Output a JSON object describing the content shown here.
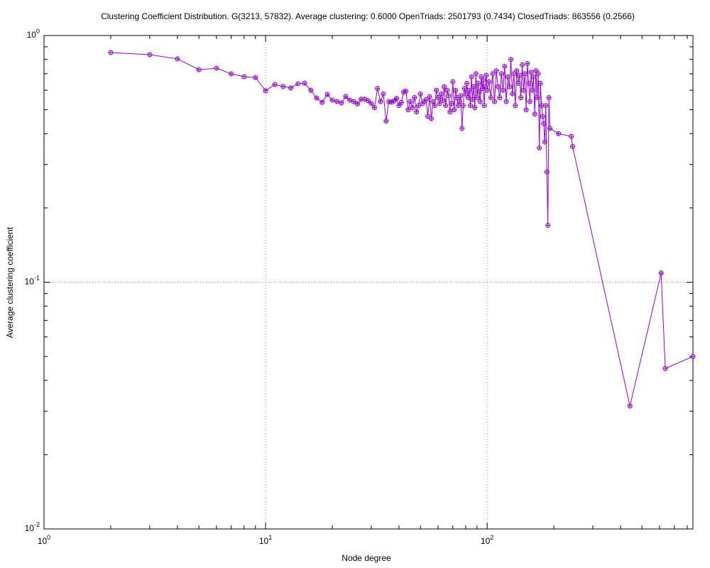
{
  "chart_data": {
    "type": "line",
    "title": "Clustering Coefficient Distribution. G(3213, 57832). Average clustering: 0.6000  OpenTriads: 2501793 (0.7434)  ClosedTriads: 863556 (0.2566)",
    "x_label": "Node degree",
    "y_label": "Average clustering coefficient",
    "log_x": true,
    "log_y": true,
    "grid": true,
    "xlim": [
      1,
      849
    ],
    "ylim": [
      0.01,
      1
    ],
    "xticks": [
      {
        "value": 1,
        "label": "10^0"
      },
      {
        "value": 10,
        "label": "10^1"
      },
      {
        "value": 100,
        "label": "10^2"
      }
    ],
    "yticks": [
      {
        "value": 0.01,
        "label": "10^-2"
      },
      {
        "value": 0.1,
        "label": "10^-1"
      },
      {
        "value": 1,
        "label": "10^0"
      }
    ],
    "series": [
      {
        "color": "#9400d3",
        "x": [
          2,
          3,
          4,
          5,
          6,
          7,
          8,
          9,
          10,
          11,
          12,
          13,
          14,
          15,
          16,
          17,
          18,
          19,
          20,
          21,
          22,
          23,
          24,
          25,
          26,
          27,
          28,
          29,
          30,
          31,
          32,
          33,
          34,
          35,
          36,
          37,
          38,
          39,
          40,
          41,
          42,
          43,
          44,
          45,
          46,
          47,
          48,
          49,
          50,
          51,
          52,
          53,
          54,
          55,
          56,
          57,
          58,
          59,
          60,
          61,
          62,
          63,
          64,
          65,
          66,
          67,
          68,
          69,
          70,
          71,
          72,
          73,
          74,
          75,
          76,
          77,
          78,
          79,
          80,
          81,
          82,
          83,
          84,
          85,
          86,
          87,
          88,
          89,
          90,
          91,
          92,
          93,
          94,
          95,
          96,
          97,
          98,
          99,
          100,
          102,
          104,
          106,
          108,
          110,
          112,
          114,
          116,
          118,
          120,
          122,
          124,
          126,
          128,
          130,
          132,
          134,
          136,
          138,
          140,
          142,
          144,
          146,
          148,
          150,
          152,
          154,
          156,
          158,
          160,
          162,
          164,
          166,
          168,
          170,
          172,
          174,
          176,
          178,
          180,
          182,
          184,
          186,
          188,
          190,
          192,
          210,
          240,
          243,
          441,
          610,
          637,
          849
        ],
        "values": [
          0.853,
          0.836,
          0.804,
          0.727,
          0.737,
          0.699,
          0.681,
          0.676,
          0.597,
          0.633,
          0.621,
          0.613,
          0.637,
          0.641,
          0.6,
          0.558,
          0.536,
          0.577,
          0.547,
          0.54,
          0.533,
          0.566,
          0.547,
          0.54,
          0.528,
          0.552,
          0.552,
          0.544,
          0.53,
          0.51,
          0.61,
          0.54,
          0.58,
          0.45,
          0.54,
          0.537,
          0.543,
          0.556,
          0.52,
          0.535,
          0.59,
          0.595,
          0.5,
          0.54,
          0.51,
          0.56,
          0.49,
          0.52,
          0.58,
          0.53,
          0.54,
          0.55,
          0.47,
          0.565,
          0.46,
          0.54,
          0.52,
          0.6,
          0.56,
          0.53,
          0.58,
          0.545,
          0.62,
          0.52,
          0.6,
          0.57,
          0.49,
          0.53,
          0.65,
          0.5,
          0.6,
          0.56,
          0.52,
          0.54,
          0.57,
          0.42,
          0.52,
          0.61,
          0.58,
          0.64,
          0.56,
          0.6,
          0.52,
          0.68,
          0.55,
          0.62,
          0.51,
          0.7,
          0.56,
          0.64,
          0.59,
          0.54,
          0.68,
          0.61,
          0.66,
          0.52,
          0.62,
          0.69,
          0.6,
          0.65,
          0.56,
          0.7,
          0.54,
          0.72,
          0.62,
          0.56,
          0.7,
          0.6,
          0.75,
          0.54,
          0.68,
          0.62,
          0.8,
          0.58,
          0.7,
          0.52,
          0.72,
          0.64,
          0.69,
          0.56,
          0.76,
          0.6,
          0.7,
          0.5,
          0.77,
          0.64,
          0.54,
          0.71,
          0.6,
          0.68,
          0.48,
          0.72,
          0.56,
          0.7,
          0.35,
          0.64,
          0.52,
          0.47,
          0.44,
          0.37,
          0.52,
          0.28,
          0.17,
          0.56,
          0.42,
          0.4,
          0.39,
          0.355,
          0.0315,
          0.109,
          0.0447,
          0.05
        ]
      }
    ]
  }
}
